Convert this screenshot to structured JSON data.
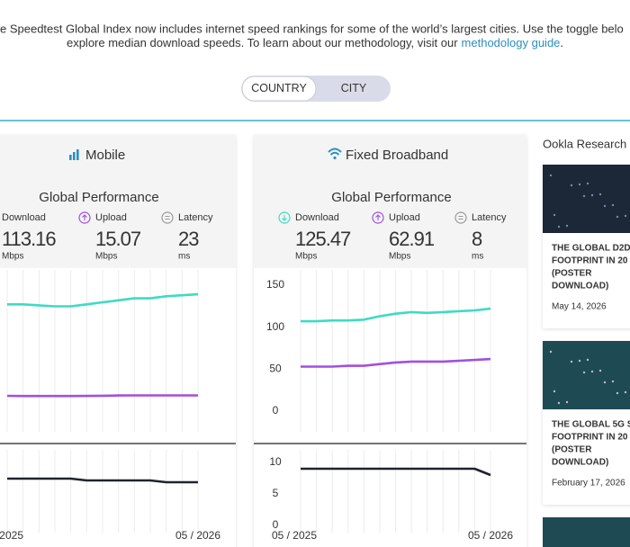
{
  "intro": {
    "line1": "e Speedtest Global Index now includes internet speed rankings for some of the world’s largest cities. Use the toggle belo",
    "line2": "explore median download speeds. To learn about our methodology, visit our",
    "link": "methodology guide",
    "end": "."
  },
  "toggle": {
    "options": [
      "COUNTRY",
      "CITY"
    ],
    "selected": 0
  },
  "panels": [
    {
      "title": "Mobile",
      "subtitle": "Global Performance",
      "metrics": [
        {
          "label": "Download",
          "value": 113.16,
          "unit": "Mbps"
        },
        {
          "label": "Upload",
          "value": 15.07,
          "unit": "Mbps"
        },
        {
          "label": "Latency",
          "value": 23,
          "unit": "ms"
        }
      ],
      "categories": [
        "2025",
        null,
        null,
        null,
        null,
        null,
        null,
        null,
        null,
        null,
        null,
        null,
        "05 / 2026"
      ],
      "charts": [
        {
          "type": "line",
          "ylim": [
            0,
            125
          ],
          "series": [
            {
              "color": "#3ddbc3",
              "values": [
                106,
                106,
                105,
                104,
                104,
                106,
                108,
                110,
                112,
                112,
                114,
                115,
                116
              ]
            },
            {
              "color": "#a24fe0",
              "values": [
                15.2,
                15,
                15,
                15,
                15,
                15.1,
                15.3,
                15.5,
                15.6,
                15.6,
                15.6,
                15.6,
                15.6
              ]
            }
          ]
        },
        {
          "type": "line",
          "ylim": [
            0,
            35
          ],
          "series": [
            {
              "color": "#1f2330",
              "values": [
                26,
                26,
                26,
                26,
                26,
                25,
                25,
                25,
                25,
                25,
                24,
                24,
                24
              ]
            }
          ]
        }
      ]
    },
    {
      "title": "Fixed Broadband",
      "subtitle": "Global Performance",
      "metrics": [
        {
          "label": "Download",
          "value": 125.47,
          "unit": "Mbps"
        },
        {
          "label": "Upload",
          "value": 62.91,
          "unit": "Mbps"
        },
        {
          "label": "Latency",
          "value": 8,
          "unit": "ms"
        }
      ],
      "categories": [
        "05 / 2025",
        null,
        null,
        null,
        null,
        null,
        null,
        null,
        null,
        null,
        null,
        null,
        "05 / 2026"
      ],
      "charts": [
        {
          "type": "line",
          "ylim": [
            0,
            150
          ],
          "yticks": [
            0,
            50,
            100,
            150
          ],
          "series": [
            {
              "color": "#3ddbc3",
              "values": [
                107,
                107,
                108,
                108,
                109,
                113,
                116,
                118,
                117,
                118,
                119,
                120,
                122
              ]
            },
            {
              "color": "#a24fe0",
              "values": [
                53,
                53,
                53,
                54,
                54,
                56,
                58,
                59,
                59,
                59,
                60,
                61,
                62
              ]
            }
          ]
        },
        {
          "type": "line",
          "ylim": [
            0,
            10
          ],
          "yticks": [
            0,
            5,
            10
          ],
          "series": [
            {
              "color": "#1f2330",
              "values": [
                9,
                9,
                9,
                9,
                9,
                9,
                9,
                9,
                9,
                9,
                9,
                9,
                8
              ]
            }
          ]
        }
      ]
    }
  ],
  "research": {
    "title": "Ookla Research",
    "articles": [
      {
        "lines": [
          "THE GLOBAL D2D",
          "FOOTPRINT IN 20",
          "(POSTER",
          "DOWNLOAD)"
        ],
        "date": "May 14, 2026"
      },
      {
        "lines": [
          "THE GLOBAL 5G S",
          "FOOTPRINT IN 20",
          "(POSTER",
          "DOWNLOAD)"
        ],
        "date": "February 17, 2026"
      }
    ]
  }
}
